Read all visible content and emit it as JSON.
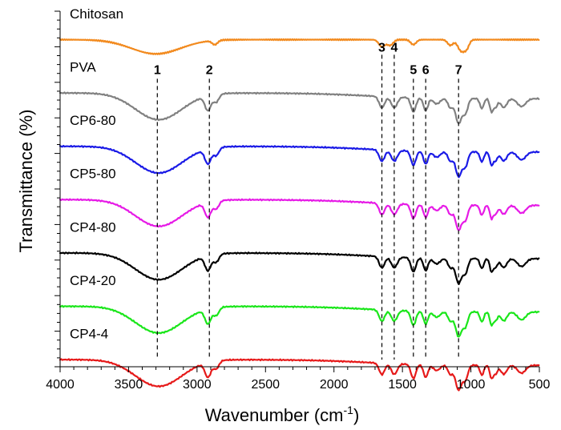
{
  "chart_data": {
    "type": "line",
    "title": "",
    "xlabel": "Wavenumber (cm",
    "xlabel_sup": "-1",
    "xlabel_close": ")",
    "ylabel": "Transmittance (%)",
    "xlim": [
      4000,
      500
    ],
    "x_ticks": [
      "4000",
      "3500",
      "3000",
      "2500",
      "2000",
      "1500",
      "1000",
      "500"
    ],
    "y_ticks_visible": false,
    "grid": false,
    "legend": "labels placed beside each curve",
    "series": [
      {
        "name": "Chitosan",
        "color": "#f28a1e",
        "offset": 92
      },
      {
        "name": "PVA",
        "color": "#808080",
        "offset": 77
      },
      {
        "name": "CP6-80",
        "color": "#1a1ae6",
        "offset": 62
      },
      {
        "name": "CP5-80",
        "color": "#e61ae6",
        "offset": 47
      },
      {
        "name": "CP4-80",
        "color": "#000000",
        "offset": 32
      },
      {
        "name": "CP4-20",
        "color": "#1ae61a",
        "offset": 17
      },
      {
        "name": "CP4-4",
        "color": "#e61a1a",
        "offset": 2
      }
    ],
    "peaks": [
      {
        "label": "1",
        "x": 3290
      },
      {
        "label": "2",
        "x": 2910
      },
      {
        "label": "3",
        "x": 1650
      },
      {
        "label": "4",
        "x": 1560
      },
      {
        "label": "5",
        "x": 1420
      },
      {
        "label": "6",
        "x": 1330
      },
      {
        "label": "7",
        "x": 1090
      }
    ]
  }
}
